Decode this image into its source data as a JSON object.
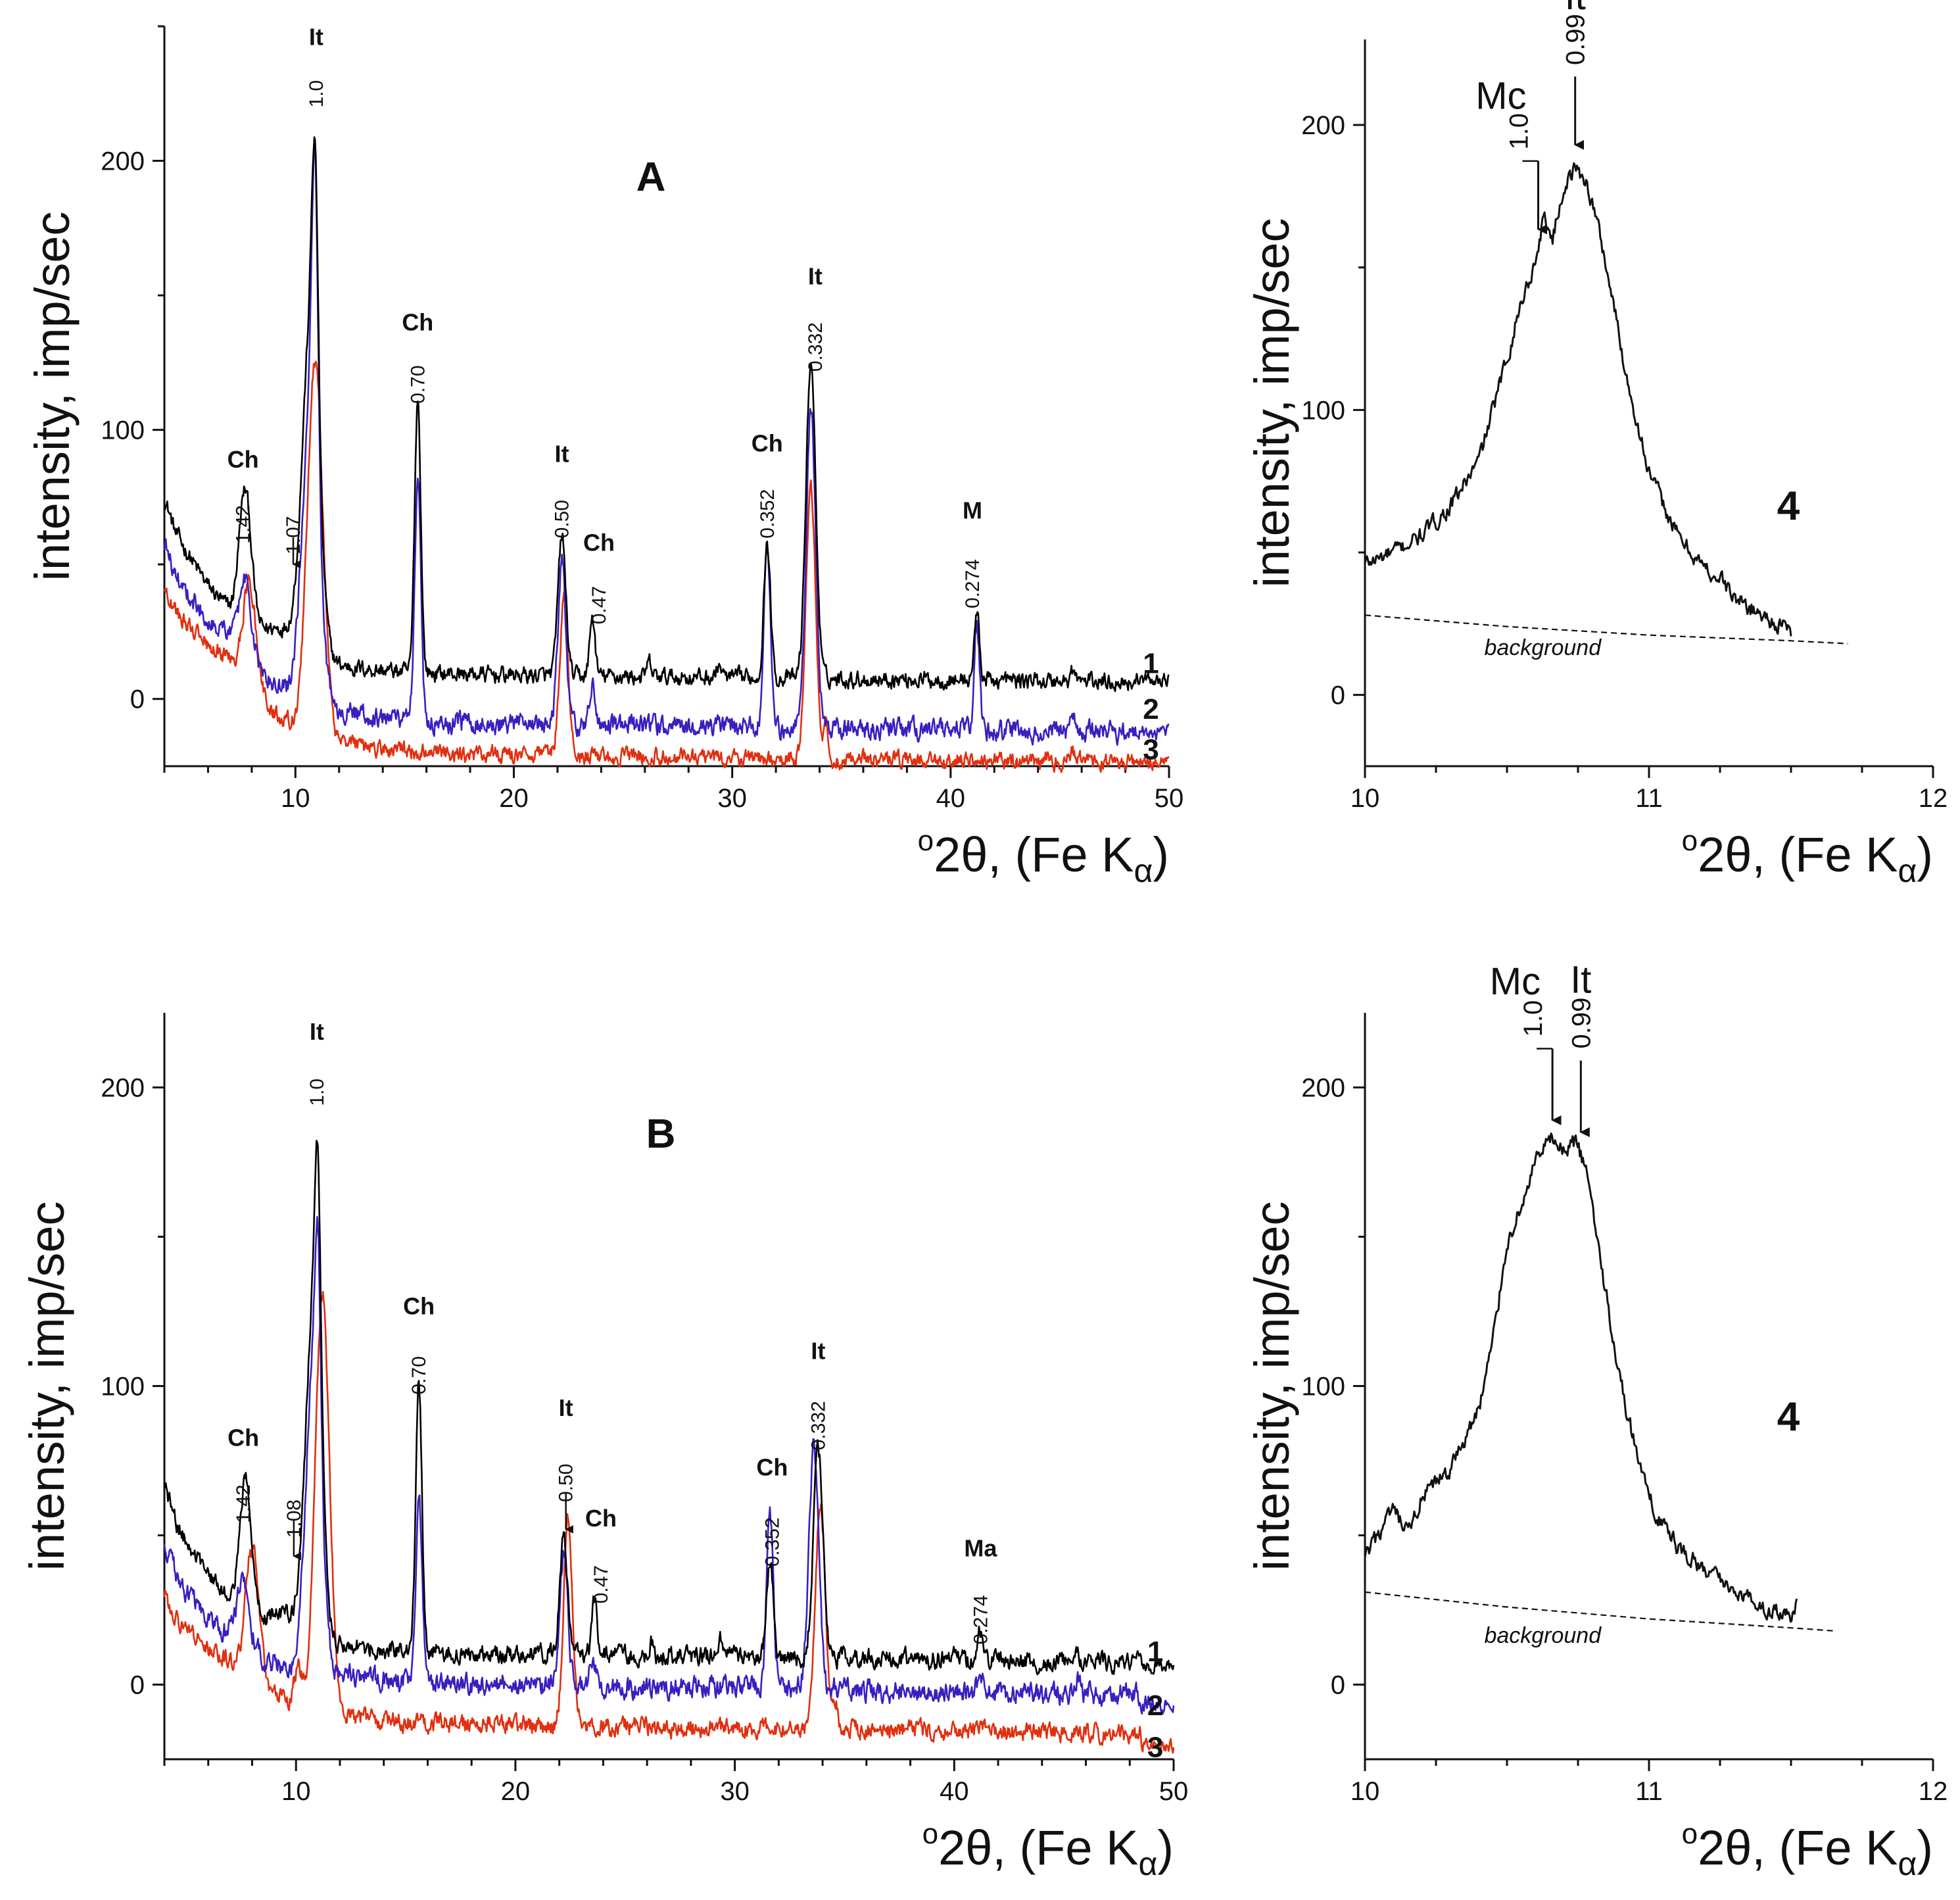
{
  "chart_data": [
    {
      "id": "A",
      "type": "line",
      "panel_label": "A",
      "xlabel": "o2θ, (Fe Kα)",
      "xlabel_parts": {
        "degree": "o",
        "main": "2θ, (Fe K",
        "sub": "α",
        "end": ")"
      },
      "ylabel": "intensity, imp/sec",
      "xlim": [
        4,
        50
      ],
      "ylim": [
        -25,
        250
      ],
      "xticks": [
        10,
        20,
        30,
        40,
        50
      ],
      "xtick_labels": [
        "10",
        "20",
        "30",
        "40",
        "50"
      ],
      "yticks": [
        0,
        100,
        200
      ],
      "ytick_labels": [
        "0",
        "100",
        "200"
      ],
      "series": [
        {
          "name": "1",
          "color": "#000000",
          "offset": 10,
          "tail": [
            [
              4.0,
              75
            ],
            [
              4.5,
              62
            ],
            [
              5.0,
              55
            ],
            [
              6.0,
              42
            ],
            [
              7.0,
              33
            ]
          ],
          "peaks": [
            [
              7.7,
              50,
              0.28
            ],
            [
              9.6,
              8,
              0.9
            ],
            [
              10.7,
              120,
              0.38
            ],
            [
              10.9,
              85,
              0.14
            ],
            [
              15.6,
              102,
              0.14
            ],
            [
              22.2,
              52,
              0.18
            ],
            [
              23.6,
              22,
              0.12
            ],
            [
              26.2,
              5,
              0.1
            ],
            [
              29.4,
              5,
              0.1
            ],
            [
              31.6,
              50,
              0.15
            ],
            [
              33.6,
              118,
              0.22
            ],
            [
              41.2,
              25,
              0.12
            ],
            [
              45.6,
              4,
              0.1
            ]
          ],
          "noise": 2.5,
          "slope": -0.08,
          "end": 8
        },
        {
          "name": "2",
          "color": "#3a1fbf",
          "offset": -8,
          "tail": [
            [
              4.0,
              58
            ],
            [
              4.5,
              46
            ],
            [
              5.0,
              40
            ],
            [
              6.0,
              30
            ],
            [
              7.0,
              24
            ]
          ],
          "peaks": [
            [
              7.7,
              28,
              0.28
            ],
            [
              10.7,
              112,
              0.38
            ],
            [
              10.9,
              110,
              0.14
            ],
            [
              15.6,
              92,
              0.14
            ],
            [
              22.2,
              60,
              0.18
            ],
            [
              23.6,
              16,
              0.12
            ],
            [
              31.6,
              70,
              0.15
            ],
            [
              33.6,
              118,
              0.22
            ],
            [
              41.2,
              40,
              0.12
            ],
            [
              45.6,
              6,
              0.1
            ]
          ],
          "noise": 3,
          "slope": -0.1,
          "end": -12
        },
        {
          "name": "3",
          "color": "#e03010",
          "offset": -20,
          "tail": [
            [
              4.0,
              42
            ],
            [
              4.5,
              32
            ],
            [
              5.0,
              28
            ],
            [
              6.0,
              20
            ],
            [
              7.0,
              15
            ]
          ],
          "peaks": [
            [
              7.9,
              40,
              0.3
            ],
            [
              10.9,
              138,
              0.35
            ],
            [
              22.3,
              58,
              0.2
            ],
            [
              33.6,
              100,
              0.22
            ],
            [
              34.3,
              12,
              0.1
            ],
            [
              45.6,
              4,
              0.15
            ]
          ],
          "noise": 2.5,
          "slope": -0.08,
          "end": -23
        }
      ],
      "curve_labels": [
        {
          "text": "1",
          "x": 48.2,
          "y": 12
        },
        {
          "text": "2",
          "x": 48.2,
          "y": -5
        },
        {
          "text": "3",
          "x": 48.2,
          "y": -20
        }
      ],
      "annotations": [
        {
          "phase": "Ch",
          "d": "1.42",
          "x": 7.6,
          "phase_y": 86,
          "d_y": 72,
          "arrow": false
        },
        {
          "phase": "",
          "d": "1.07",
          "x": 9.9,
          "phase_y": null,
          "d_y": 68,
          "arrow": true,
          "arrow_from": 60,
          "arrow_to": 50
        },
        {
          "phase": "It",
          "d": "1.0",
          "x": 10.95,
          "phase_y": 243,
          "d_y": 230,
          "arrow": false
        },
        {
          "phase": "Ch",
          "d": "0.70",
          "x": 15.6,
          "phase_y": 137,
          "d_y": 124,
          "arrow": false
        },
        {
          "phase": "It",
          "d": "0.50",
          "x": 22.2,
          "phase_y": 88,
          "d_y": 74,
          "arrow": false
        },
        {
          "phase": "Ch",
          "d": "0.47",
          "x": 23.9,
          "phase_y": 55,
          "d_y": 42,
          "arrow": false
        },
        {
          "phase": "Ch",
          "d": "0.352",
          "x": 31.6,
          "phase_y": 92,
          "d_y": 78,
          "arrow": false
        },
        {
          "phase": "It",
          "d": "0.332",
          "x": 33.8,
          "phase_y": 154,
          "d_y": 140,
          "arrow": false
        },
        {
          "phase": "M",
          "d": "0.274",
          "x": 41.0,
          "phase_y": 67,
          "d_y": 52,
          "arrow": false
        }
      ]
    },
    {
      "id": "A4",
      "type": "line",
      "panel_label": "4",
      "xlabel": "o2θ, (Fe Kα)",
      "xlabel_parts": {
        "degree": "o",
        "main": "2θ, (Fe K",
        "sub": "α",
        "end": ")"
      },
      "ylabel": "intensity, imp/sec",
      "xlim": [
        10,
        12
      ],
      "ylim": [
        -25,
        230
      ],
      "xticks": [
        10,
        11,
        12
      ],
      "xtick_labels": [
        "10",
        "11",
        "12"
      ],
      "yticks": [
        0,
        100,
        200
      ],
      "ytick_labels": [
        "0",
        "100",
        "200"
      ],
      "curve": [
        [
          10.0,
          46
        ],
        [
          10.1,
          50
        ],
        [
          10.2,
          56
        ],
        [
          10.3,
          66
        ],
        [
          10.4,
          82
        ],
        [
          10.5,
          118
        ],
        [
          10.55,
          138
        ],
        [
          10.6,
          152
        ],
        [
          10.63,
          168
        ],
        [
          10.66,
          160
        ],
        [
          10.7,
          178
        ],
        [
          10.74,
          185
        ],
        [
          10.78,
          180
        ],
        [
          10.82,
          165
        ],
        [
          10.87,
          140
        ],
        [
          10.92,
          112
        ],
        [
          11.0,
          78
        ],
        [
          11.1,
          56
        ],
        [
          11.2,
          44
        ],
        [
          11.26,
          40
        ],
        [
          11.3,
          34
        ],
        [
          11.4,
          28
        ],
        [
          11.5,
          22
        ]
      ],
      "noise": 2.5,
      "background": [
        [
          10.0,
          28
        ],
        [
          10.5,
          24
        ],
        [
          11.0,
          21
        ],
        [
          11.5,
          19
        ],
        [
          11.7,
          18
        ]
      ],
      "background_label": "background",
      "mc_label": "Mc",
      "mc_d": "1.0",
      "mc_x": 10.61,
      "it_label": "It",
      "it_d": "0.99",
      "it_x": 10.74
    },
    {
      "id": "B",
      "type": "line",
      "panel_label": "B",
      "xlabel": "o2θ, (Fe Kα)",
      "xlabel_parts": {
        "degree": "o",
        "main": "2θ, (Fe K",
        "sub": "α",
        "end": ")"
      },
      "ylabel": "intensity, imp/sec",
      "xlim": [
        4,
        50
      ],
      "ylim": [
        -25,
        225
      ],
      "xticks": [
        10,
        20,
        30,
        40,
        50
      ],
      "xtick_labels": [
        "10",
        "20",
        "30",
        "40",
        "50"
      ],
      "yticks": [
        0,
        100,
        200
      ],
      "ytick_labels": [
        "0",
        "100",
        "200"
      ],
      "series": [
        {
          "name": "1",
          "color": "#000000",
          "offset": 12,
          "tail": [
            [
              4.0,
              68
            ],
            [
              4.5,
              55
            ],
            [
              5.0,
              48
            ],
            [
              6.0,
              36
            ],
            [
              7.0,
              28
            ]
          ],
          "peaks": [
            [
              7.7,
              44,
              0.28
            ],
            [
              9.6,
              6,
              0.9
            ],
            [
              10.8,
              110,
              0.35
            ],
            [
              11.0,
              70,
              0.13
            ],
            [
              15.6,
              90,
              0.14
            ],
            [
              22.2,
              38,
              0.18
            ],
            [
              23.6,
              18,
              0.12
            ],
            [
              26.2,
              5,
              0.1
            ],
            [
              29.4,
              5,
              0.1
            ],
            [
              31.6,
              33,
              0.15
            ],
            [
              33.8,
              70,
              0.22
            ],
            [
              40.0,
              5,
              0.1
            ],
            [
              41.2,
              10,
              0.12
            ],
            [
              45.6,
              4,
              0.1
            ]
          ],
          "noise": 2.5,
          "slope": -0.1,
          "end": 5
        },
        {
          "name": "2",
          "color": "#3a1fbf",
          "offset": 2,
          "tail": [
            [
              4.0,
              48
            ],
            [
              4.5,
              38
            ],
            [
              5.0,
              32
            ],
            [
              6.0,
              22
            ],
            [
              7.0,
              16
            ]
          ],
          "peaks": [
            [
              7.6,
              22,
              0.28
            ],
            [
              10.8,
              105,
              0.35
            ],
            [
              11.0,
              60,
              0.13
            ],
            [
              15.6,
              62,
              0.14
            ],
            [
              22.2,
              45,
              0.18
            ],
            [
              23.5,
              10,
              0.12
            ],
            [
              31.6,
              60,
              0.15
            ],
            [
              33.6,
              82,
              0.22
            ],
            [
              41.2,
              5,
              0.12
            ],
            [
              45.6,
              4,
              0.1
            ]
          ],
          "noise": 3,
          "slope": -0.12,
          "end": -10
        },
        {
          "name": "3",
          "color": "#e03010",
          "offset": -12,
          "tail": [
            [
              4.0,
              30
            ],
            [
              4.5,
              22
            ],
            [
              5.0,
              18
            ],
            [
              6.0,
              12
            ],
            [
              7.0,
              8
            ]
          ],
          "peaks": [
            [
              8.0,
              45,
              0.3
            ],
            [
              10.1,
              12,
              0.2
            ],
            [
              11.2,
              140,
              0.32
            ],
            [
              22.4,
              70,
              0.2
            ],
            [
              33.9,
              78,
              0.22
            ],
            [
              34.6,
              10,
              0.1
            ]
          ],
          "noise": 2.5,
          "slope": -0.1,
          "end": -25
        }
      ],
      "curve_labels": [
        {
          "text": "1",
          "x": 48.2,
          "y": 10
        },
        {
          "text": "2",
          "x": 48.2,
          "y": -8
        },
        {
          "text": "3",
          "x": 48.2,
          "y": -22
        }
      ],
      "annotations": [
        {
          "phase": "Ch",
          "d": "1.42",
          "x": 7.6,
          "phase_y": 80,
          "d_y": 67,
          "arrow": false
        },
        {
          "phase": "",
          "d": "1.08",
          "x": 9.9,
          "phase_y": null,
          "d_y": 62,
          "arrow": true,
          "arrow_from": 55,
          "arrow_to": 43
        },
        {
          "phase": "It",
          "d": "1.0",
          "x": 10.95,
          "phase_y": 216,
          "d_y": 203,
          "arrow": false
        },
        {
          "phase": "Ch",
          "d": "0.70",
          "x": 15.6,
          "phase_y": 124,
          "d_y": 110,
          "arrow": false
        },
        {
          "phase": "It",
          "d": "0.50",
          "x": 22.3,
          "phase_y": 90,
          "d_y": 74,
          "arrow": true,
          "arrow_from": 64,
          "arrow_to": 52
        },
        {
          "phase": "Ch",
          "d": "0.47",
          "x": 23.9,
          "phase_y": 53,
          "d_y": 40,
          "arrow": false
        },
        {
          "phase": "Ch",
          "d": "0.352",
          "x": 31.7,
          "phase_y": 70,
          "d_y": 56,
          "arrow": false
        },
        {
          "phase": "It",
          "d": "0.332",
          "x": 33.8,
          "phase_y": 109,
          "d_y": 95,
          "arrow": false
        },
        {
          "phase": "Ma",
          "d": "0.274",
          "x": 41.2,
          "phase_y": 43,
          "d_y": 30,
          "arrow": false
        }
      ]
    },
    {
      "id": "B4",
      "type": "line",
      "panel_label": "4",
      "xlabel": "o2θ, (Fe Kα)",
      "xlabel_parts": {
        "degree": "o",
        "main": "2θ, (Fe K",
        "sub": "α",
        "end": ")"
      },
      "ylabel": "intensity, imp/sec",
      "xlim": [
        10,
        12
      ],
      "ylim": [
        -25,
        225
      ],
      "xticks": [
        10,
        11,
        12
      ],
      "xtick_labels": [
        "10",
        "11",
        "12"
      ],
      "yticks": [
        0,
        100,
        200
      ],
      "ytick_labels": [
        "0",
        "100",
        "200"
      ],
      "curve": [
        [
          10.0,
          42
        ],
        [
          10.06,
          52
        ],
        [
          10.1,
          58
        ],
        [
          10.15,
          50
        ],
        [
          10.2,
          62
        ],
        [
          10.3,
          72
        ],
        [
          10.4,
          92
        ],
        [
          10.45,
          115
        ],
        [
          10.5,
          148
        ],
        [
          10.55,
          160
        ],
        [
          10.6,
          175
        ],
        [
          10.66,
          183
        ],
        [
          10.7,
          178
        ],
        [
          10.74,
          182
        ],
        [
          10.78,
          172
        ],
        [
          10.82,
          148
        ],
        [
          10.87,
          118
        ],
        [
          10.92,
          92
        ],
        [
          11.0,
          62
        ],
        [
          11.1,
          46
        ],
        [
          11.2,
          38
        ],
        [
          11.3,
          32
        ],
        [
          11.4,
          26
        ],
        [
          11.5,
          22
        ],
        [
          11.52,
          26
        ]
      ],
      "noise": 2.5,
      "background": [
        [
          10.0,
          31
        ],
        [
          10.5,
          26
        ],
        [
          11.0,
          22
        ],
        [
          11.5,
          19
        ],
        [
          11.65,
          18
        ]
      ],
      "background_label": "background",
      "mc_label": "Mc",
      "mc_d": "1.0",
      "mc_x": 10.66,
      "it_label": "It",
      "it_d": "0.99",
      "it_x": 10.76
    }
  ]
}
